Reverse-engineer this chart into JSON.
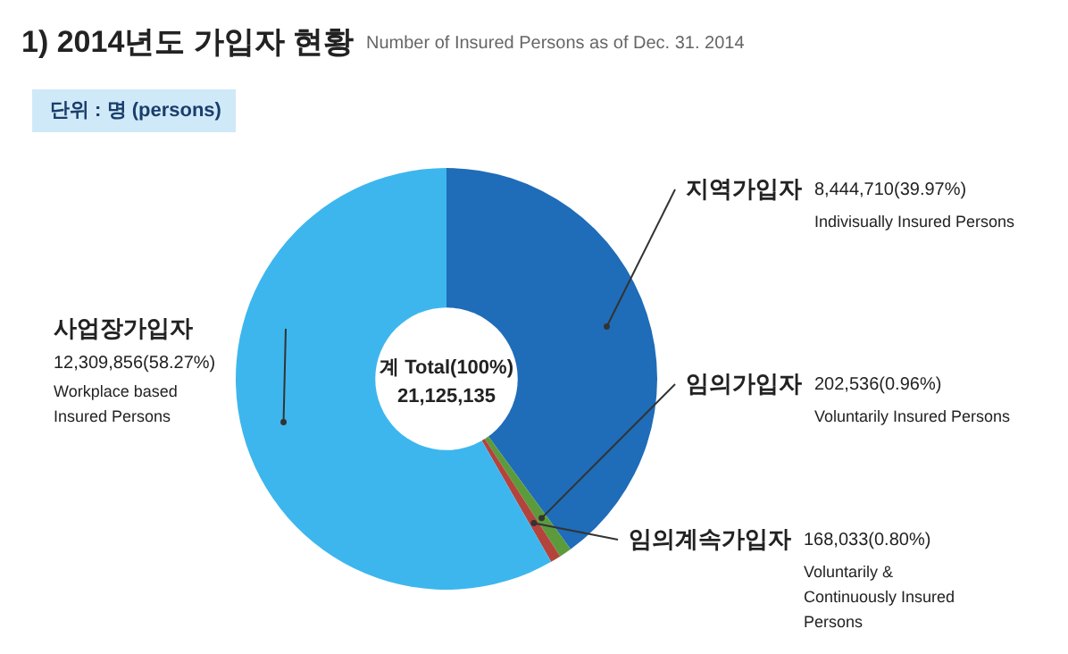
{
  "chart_data": {
    "type": "donut",
    "title": "1) 2014년도 가입자 현황",
    "subtitle": "Number of Insured Persons as of Dec. 31. 2014",
    "categories": [
      "지역가입자",
      "임의가입자",
      "임의계속가입자",
      "사업장가입자"
    ],
    "values": [
      8444710,
      202536,
      168033,
      12309856
    ],
    "colors": [
      "#1f6cb9",
      "#5b9b3c",
      "#b4433c",
      "#3db6ee"
    ],
    "value_labels": [
      "8,444,710(39.97%)",
      "202,536(0.96%)",
      "168,033(0.80%)",
      "12,309,856(58.27%)"
    ],
    "annotations": [
      "단위 : 명 (persons)",
      "계 Total(100%)",
      "21,125,135",
      "Indivisually Insured Persons",
      "Voluntarily  Insured Persons",
      "Voluntarily & Continuously Insured Persons",
      "Workplace based Insured Persons"
    ]
  }
}
